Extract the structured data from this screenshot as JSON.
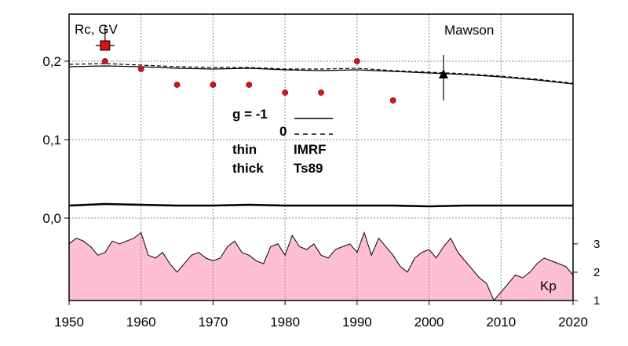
{
  "chart_data": {
    "type": "line",
    "ylabel": "Rc, GV",
    "station": "Mawson",
    "x_ticks": [
      "1950",
      "1960",
      "1970",
      "1980",
      "1990",
      "2000",
      "2010",
      "2020"
    ],
    "y_ticks": [
      "0,0",
      "0,1",
      "0,2"
    ],
    "xlim": [
      1950,
      2020
    ],
    "ylim": [
      -0.105,
      0.26
    ],
    "grid": true,
    "colors": {
      "points": "#dd1111",
      "kp_fill": "#ffbfd3",
      "line": "#000000"
    },
    "legend": {
      "g_label": "g  = -1",
      "g_zero": "0",
      "thin": "thin",
      "thick": "thick",
      "imrf": "IMRF",
      "ts89": "Ts89"
    },
    "series": [
      {
        "style": "solid-thin",
        "x": [
          1950,
          1955,
          1960,
          1965,
          1970,
          1975,
          1980,
          1985,
          1990,
          1995,
          2000,
          2005,
          2010,
          2015,
          2020
        ],
        "y": [
          0.193,
          0.194,
          0.193,
          0.191,
          0.19,
          0.191,
          0.189,
          0.188,
          0.189,
          0.187,
          0.185,
          0.183,
          0.18,
          0.176,
          0.171
        ]
      },
      {
        "style": "dashed",
        "x": [
          1950,
          1955,
          1960,
          1965,
          1970,
          1975,
          1980,
          1985,
          1990,
          1995,
          2000,
          2005,
          2010,
          2015,
          2020
        ],
        "y": [
          0.196,
          0.197,
          0.195,
          0.193,
          0.192,
          0.192,
          0.19,
          0.19,
          0.191,
          0.188,
          0.186,
          0.184,
          0.181,
          0.177,
          0.172
        ]
      },
      {
        "style": "thick-difference",
        "x": [
          1950,
          1955,
          1960,
          1965,
          1970,
          1975,
          1980,
          1985,
          1990,
          1995,
          2000,
          2005,
          2010,
          2015,
          2020
        ],
        "y": [
          0.016,
          0.018,
          0.017,
          0.016,
          0.016,
          0.017,
          0.016,
          0.016,
          0.016,
          0.016,
          0.015,
          0.016,
          0.016,
          0.016,
          0.016
        ]
      }
    ],
    "points": {
      "x": [
        1955,
        1960,
        1965,
        1970,
        1975,
        1980,
        1985,
        1990,
        1995
      ],
      "y": [
        0.2,
        0.19,
        0.17,
        0.17,
        0.17,
        0.16,
        0.16,
        0.2,
        0.15
      ]
    },
    "square_marker": {
      "x": 1955,
      "y": 0.22,
      "err": 0.025
    },
    "triangle_marker": {
      "x": 2002,
      "y": 0.183,
      "err": 0.025
    },
    "kp": {
      "label": "Kp",
      "ticks": [
        "1",
        "2",
        "3"
      ],
      "ylim": [
        1,
        3.3
      ],
      "x": [
        1950,
        1951,
        1952,
        1953,
        1954,
        1955,
        1956,
        1957,
        1958,
        1959,
        1960,
        1961,
        1962,
        1963,
        1964,
        1965,
        1966,
        1967,
        1968,
        1969,
        1970,
        1971,
        1972,
        1973,
        1974,
        1975,
        1976,
        1977,
        1978,
        1979,
        1980,
        1981,
        1982,
        1983,
        1984,
        1985,
        1986,
        1987,
        1988,
        1989,
        1990,
        1991,
        1992,
        1993,
        1994,
        1995,
        1996,
        1997,
        1998,
        1999,
        2000,
        2001,
        2002,
        2003,
        2004,
        2005,
        2006,
        2007,
        2008,
        2009,
        2010,
        2011,
        2012,
        2013,
        2014,
        2015,
        2016,
        2017,
        2018,
        2019,
        2020
      ],
      "values": [
        3.0,
        3.2,
        3.1,
        2.9,
        2.6,
        2.7,
        3.1,
        3.0,
        3.1,
        3.2,
        3.4,
        2.6,
        2.5,
        2.7,
        2.3,
        2.0,
        2.3,
        2.6,
        2.7,
        2.5,
        2.4,
        2.5,
        2.9,
        3.1,
        2.7,
        2.6,
        2.4,
        2.3,
        2.9,
        3.0,
        2.6,
        3.3,
        2.9,
        2.8,
        3.0,
        2.6,
        2.5,
        2.8,
        2.9,
        3.0,
        2.7,
        3.4,
        2.6,
        3.2,
        2.9,
        2.6,
        2.2,
        2.0,
        2.5,
        2.7,
        2.8,
        2.5,
        2.9,
        3.2,
        2.7,
        2.4,
        2.1,
        1.8,
        1.6,
        1.0,
        1.3,
        1.6,
        1.9,
        1.8,
        2.0,
        2.3,
        2.5,
        2.4,
        2.3,
        2.2,
        1.9
      ]
    }
  }
}
